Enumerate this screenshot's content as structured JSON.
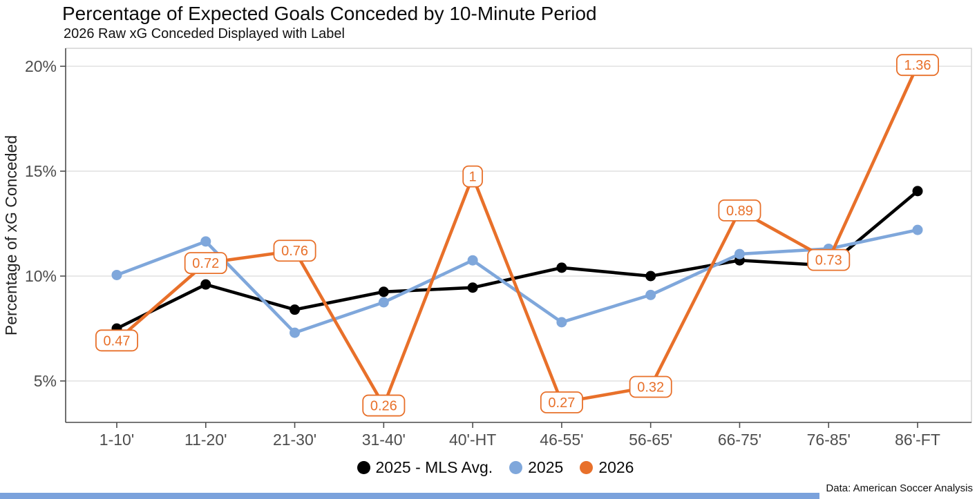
{
  "chart_data": {
    "type": "line",
    "title": "Percentage of Expected Goals Conceded by 10-Minute Period",
    "subtitle": "2026 Raw xG Conceded Displayed with Label",
    "caption": "Data: American Soccer Analysis",
    "xlabel": "",
    "ylabel": "Percentage of xG Conceded",
    "categories": [
      "1-10'",
      "11-20'",
      "21-30'",
      "31-40'",
      "40'-HT",
      "46-55'",
      "56-65'",
      "66-75'",
      "76-85'",
      "86'-FT"
    ],
    "y_ticks": [
      "5%",
      "10%",
      "15%",
      "20%"
    ],
    "y_tick_values": [
      5,
      10,
      15,
      20
    ],
    "ylim": [
      3,
      21
    ],
    "grid": "horizontal-major-only",
    "legend_position": "bottom",
    "series": [
      {
        "name": "2025 - MLS Avg.",
        "color": "#000000",
        "values_pct": [
          7.5,
          9.6,
          8.4,
          9.25,
          9.45,
          10.4,
          10.0,
          10.75,
          10.5,
          14.05
        ]
      },
      {
        "name": "2025",
        "color": "#7fa7db",
        "values_pct": [
          10.05,
          11.65,
          7.3,
          8.75,
          10.75,
          7.8,
          9.1,
          11.05,
          11.3,
          12.2
        ]
      },
      {
        "name": "2026",
        "color": "#e8702a",
        "values_pct": [
          6.93,
          10.62,
          11.21,
          3.83,
          14.75,
          3.98,
          4.72,
          13.13,
          10.77,
          20.06
        ],
        "point_labels": [
          "0.47",
          "0.72",
          "0.76",
          "0.26",
          "1",
          "0.27",
          "0.32",
          "0.89",
          "0.73",
          "1.36"
        ]
      }
    ]
  },
  "colors": {
    "grid": "#d9d9d9",
    "panel_border": "#c8c8c8",
    "axis_line": "#4d4d4d",
    "tick_text": "#4d4d4d",
    "axis_title_text": "#222222",
    "label_box_fill": "#ffffff",
    "bottom_bar": "#7ba2dc"
  }
}
